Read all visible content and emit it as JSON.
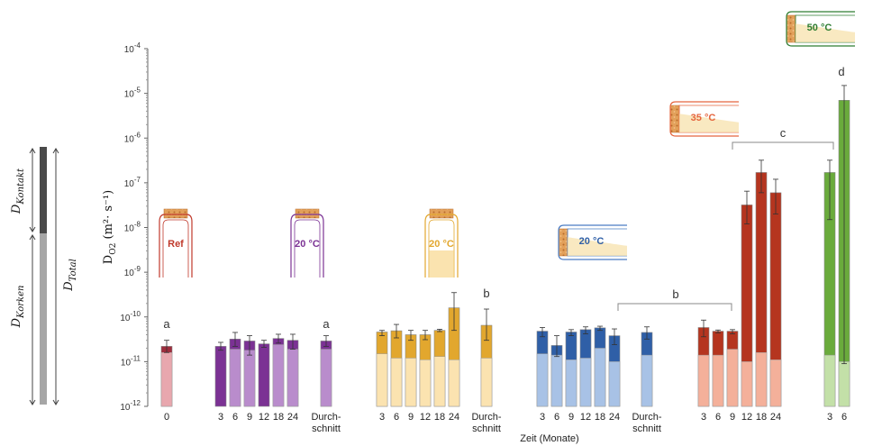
{
  "chart_data": {
    "type": "bar",
    "yscale": "log",
    "ylim": [
      1e-12,
      0.0001
    ],
    "y_tick_labels": [
      "10-12",
      "10-11",
      "10-10",
      "10-9",
      "10-8",
      "10-7",
      "10-6",
      "10-5",
      "10-4"
    ],
    "ylabel": {
      "main": "D",
      "sub": "O2",
      "units": "(m²· s⁻¹)"
    },
    "xlabel": "Zeit (Monate)",
    "groups": [
      {
        "id": "ref",
        "color_dark": "#9e2d3d",
        "color_light": "#e8a7ae",
        "label": "Ref",
        "cap_color": "#c0392b",
        "bars": [
          {
            "cat": "0",
            "total": 2.2e-11,
            "korken": 1.6e-11,
            "err": [
              1.6e-11,
              3e-11
            ]
          }
        ]
      },
      {
        "id": "p20",
        "color_dark": "#7b3294",
        "color_light": "#b98ccc",
        "label": "20 °C",
        "cap_color": "#7b3294",
        "bars": [
          {
            "cat": "3",
            "total": 2.2e-11,
            "korken": null,
            "err": [
              1.8e-11,
              2.7e-11
            ]
          },
          {
            "cat": "6",
            "total": 3.2e-11,
            "korken": 1.9e-11,
            "err": [
              2.2e-11,
              4.5e-11
            ]
          },
          {
            "cat": "9",
            "total": 2.9e-11,
            "korken": 1.8e-11,
            "err": [
              1.4e-11,
              3.8e-11
            ]
          },
          {
            "cat": "12",
            "total": 2.5e-11,
            "korken": null,
            "err": [
              2.1e-11,
              3e-11
            ]
          },
          {
            "cat": "18",
            "total": 3.3e-11,
            "korken": 2.4e-11,
            "err": [
              2.6e-11,
              4.1e-11
            ]
          },
          {
            "cat": "24",
            "total": 3e-11,
            "korken": 1.9e-11,
            "err": [
              1.9e-11,
              4.1e-11
            ]
          },
          {
            "cat": "Durch-\nschnitt",
            "total": 2.9e-11,
            "korken": 1.9e-11,
            "err": [
              2.2e-11,
              3.8e-11
            ]
          }
        ]
      },
      {
        "id": "o20",
        "color_dark": "#e2a72e",
        "color_light": "#fbe3b0",
        "label": "20 °C",
        "cap_color": "#e2a72e",
        "bars": [
          {
            "cat": "3",
            "total": 4.6e-11,
            "korken": 1.5e-11,
            "err": [
              3.8e-11,
              5e-11
            ]
          },
          {
            "cat": "6",
            "total": 4.9e-11,
            "korken": 1.2e-11,
            "err": [
              3.4e-11,
              6.8e-11
            ]
          },
          {
            "cat": "9",
            "total": 4e-11,
            "korken": 1.2e-11,
            "err": [
              3e-11,
              5e-11
            ]
          },
          {
            "cat": "12",
            "total": 4e-11,
            "korken": 1.1e-11,
            "err": [
              3.1e-11,
              5e-11
            ]
          },
          {
            "cat": "18",
            "total": 5e-11,
            "korken": 1.3e-11,
            "err": [
              4.7e-11,
              5.3e-11
            ]
          },
          {
            "cat": "24",
            "total": 1.6e-10,
            "korken": 1.1e-11,
            "err": [
              5e-11,
              3.5e-10
            ]
          },
          {
            "cat": "Durch-\nschnitt",
            "total": 6.5e-11,
            "korken": 1.2e-11,
            "err": [
              3e-11,
              1.5e-10
            ]
          }
        ]
      },
      {
        "id": "b20",
        "color_dark": "#2f5fa7",
        "color_light": "#a8c2e6",
        "label": "20 °C",
        "cap_color": "#4a7cc4",
        "bars": [
          {
            "cat": "3",
            "total": 4.8e-11,
            "korken": 1.5e-11,
            "err": [
              3.6e-11,
              5.8e-11
            ]
          },
          {
            "cat": "6",
            "total": 2.3e-11,
            "korken": 1.4e-11,
            "err": [
              1.3e-11,
              3.8e-11
            ]
          },
          {
            "cat": "9",
            "total": 4.6e-11,
            "korken": 1.1e-11,
            "err": [
              3.8e-11,
              5.2e-11
            ]
          },
          {
            "cat": "12",
            "total": 5.2e-11,
            "korken": 1.2e-11,
            "err": [
              4.2e-11,
              6e-11
            ]
          },
          {
            "cat": "18",
            "total": 5.7e-11,
            "korken": 2e-11,
            "err": [
              5e-11,
              6.2e-11
            ]
          },
          {
            "cat": "24",
            "total": 3.8e-11,
            "korken": 1e-11,
            "err": [
              2.4e-11,
              5.4e-11
            ]
          },
          {
            "cat": "Durch-\nschnitt",
            "total": 4.5e-11,
            "korken": 1.4e-11,
            "err": [
              3.2e-11,
              6e-11
            ]
          }
        ]
      },
      {
        "id": "r35",
        "color_dark": "#b5351f",
        "color_light": "#f4b09a",
        "label": "35 °C",
        "cap_color": "#e5653e",
        "bars": [
          {
            "cat": "3",
            "total": 5.8e-11,
            "korken": 1.4e-11,
            "err": [
              3.6e-11,
              8.5e-11
            ]
          },
          {
            "cat": "6",
            "total": 4.8e-11,
            "korken": 1.4e-11,
            "err": [
              4.4e-11,
              5.1e-11
            ]
          },
          {
            "cat": "9",
            "total": 4.8e-11,
            "korken": 1.9e-11,
            "err": [
              4.2e-11,
              5.2e-11
            ]
          },
          {
            "cat": "12",
            "total": 3.2e-08,
            "korken": 1e-11,
            "err": [
              1.2e-08,
              6.5e-08
            ]
          },
          {
            "cat": "18",
            "total": 1.7e-07,
            "korken": 1.6e-11,
            "err": [
              6e-08,
              3.2e-07
            ]
          },
          {
            "cat": "24",
            "total": 6e-08,
            "korken": 1.1e-11,
            "err": [
              2e-08,
              1.2e-07
            ]
          }
        ]
      },
      {
        "id": "g50",
        "color_dark": "#6aab3c",
        "color_light": "#c3e0a8",
        "label": "50 °C",
        "cap_color": "#2e7d32",
        "bars": [
          {
            "cat": "3",
            "total": 1.7e-07,
            "korken": 1.4e-11,
            "err": [
              1.5e-08,
              3.2e-07
            ]
          },
          {
            "cat": "6",
            "total": 7e-06,
            "korken": 1e-11,
            "err": [
              9e-12,
              1.5e-05
            ]
          }
        ]
      }
    ],
    "significance": {
      "ref": "a",
      "p20_avg": "a",
      "o20_avg": "b",
      "b_span": "b",
      "c_span": "c",
      "d": "d"
    },
    "legend_bar": {
      "kontakt": "Kontakt",
      "korken": "Korken",
      "total": "Total",
      "letter": "D"
    }
  }
}
